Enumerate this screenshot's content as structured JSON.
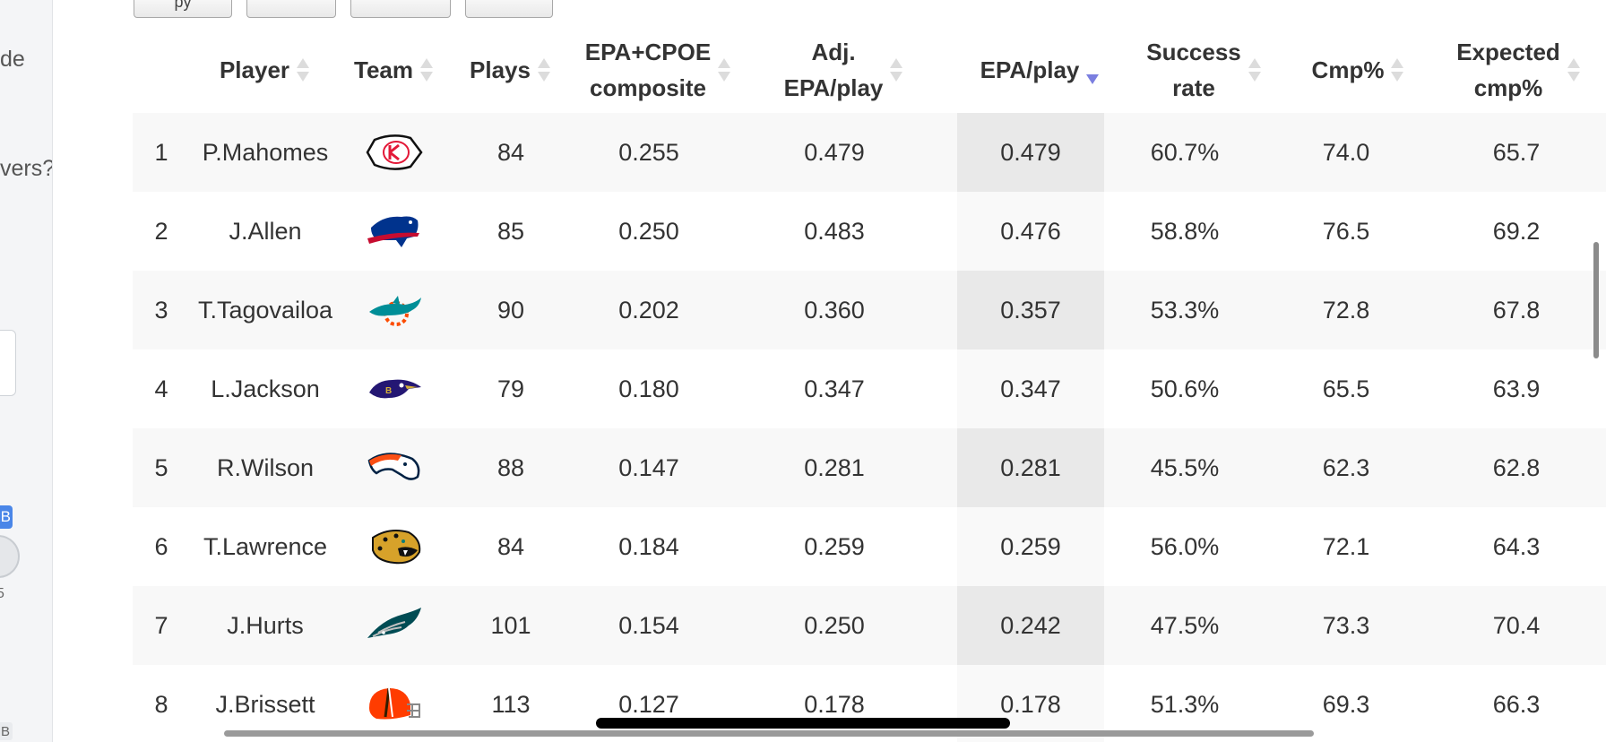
{
  "sidebar": {
    "text1": "de",
    "text2": "vers?",
    "badge": "B",
    "small1": "5",
    "tag": "B"
  },
  "table": {
    "headers": {
      "rank": "",
      "player": "Player",
      "team": "Team",
      "plays": "Plays",
      "composite_l1": "EPA+CPOE",
      "composite_l2": "composite",
      "adj_l1": "Adj.",
      "adj_l2": "EPA/play",
      "epa": "EPA/play",
      "success_l1": "Success",
      "success_l2": "rate",
      "cmp": "Cmp%",
      "exp_l1": "Expected",
      "exp_l2": "cmp%"
    },
    "sorted_column": "EPA/play",
    "sort_direction": "descending",
    "rows": [
      {
        "rank": "1",
        "player": "P.Mahomes",
        "team_logo": "chiefs-logo-icon",
        "plays": "84",
        "composite": "0.255",
        "adj_epa": "0.479",
        "epa": "0.479",
        "success": "60.7%",
        "cmp": "74.0",
        "exp_cmp": "65.7"
      },
      {
        "rank": "2",
        "player": "J.Allen",
        "team_logo": "bills-logo-icon",
        "plays": "85",
        "composite": "0.250",
        "adj_epa": "0.483",
        "epa": "0.476",
        "success": "58.8%",
        "cmp": "76.5",
        "exp_cmp": "69.2"
      },
      {
        "rank": "3",
        "player": "T.Tagovailoa",
        "team_logo": "dolphins-logo-icon",
        "plays": "90",
        "composite": "0.202",
        "adj_epa": "0.360",
        "epa": "0.357",
        "success": "53.3%",
        "cmp": "72.8",
        "exp_cmp": "67.8"
      },
      {
        "rank": "4",
        "player": "L.Jackson",
        "team_logo": "ravens-logo-icon",
        "plays": "79",
        "composite": "0.180",
        "adj_epa": "0.347",
        "epa": "0.347",
        "success": "50.6%",
        "cmp": "65.5",
        "exp_cmp": "63.9"
      },
      {
        "rank": "5",
        "player": "R.Wilson",
        "team_logo": "broncos-logo-icon",
        "plays": "88",
        "composite": "0.147",
        "adj_epa": "0.281",
        "epa": "0.281",
        "success": "45.5%",
        "cmp": "62.3",
        "exp_cmp": "62.8"
      },
      {
        "rank": "6",
        "player": "T.Lawrence",
        "team_logo": "jaguars-logo-icon",
        "plays": "84",
        "composite": "0.184",
        "adj_epa": "0.259",
        "epa": "0.259",
        "success": "56.0%",
        "cmp": "72.1",
        "exp_cmp": "64.3"
      },
      {
        "rank": "7",
        "player": "J.Hurts",
        "team_logo": "eagles-logo-icon",
        "plays": "101",
        "composite": "0.154",
        "adj_epa": "0.250",
        "epa": "0.242",
        "success": "47.5%",
        "cmp": "73.3",
        "exp_cmp": "70.4"
      },
      {
        "rank": "8",
        "player": "J.Brissett",
        "team_logo": "browns-logo-icon",
        "plays": "113",
        "composite": "0.127",
        "adj_epa": "0.178",
        "epa": "0.178",
        "success": "51.3%",
        "cmp": "69.3",
        "exp_cmp": "66.3"
      }
    ]
  },
  "colors": {
    "sort_arrow_active": "#7b7fe0",
    "sort_arrow_inactive": "#dcdcdc",
    "badge": "#4a86e8",
    "chiefs_red": "#e31837",
    "bills_blue": "#00338d",
    "bills_red": "#c60c30",
    "dolphins_aqua": "#008e97",
    "dolphins_orange": "#fc4c02",
    "ravens_purple": "#241773",
    "broncos_orange": "#fb4f14",
    "broncos_navy": "#002244",
    "jaguars_gold": "#d7a22a",
    "eagles_green": "#004c54",
    "browns_orange": "#ff3c00",
    "browns_brown": "#311d00"
  }
}
